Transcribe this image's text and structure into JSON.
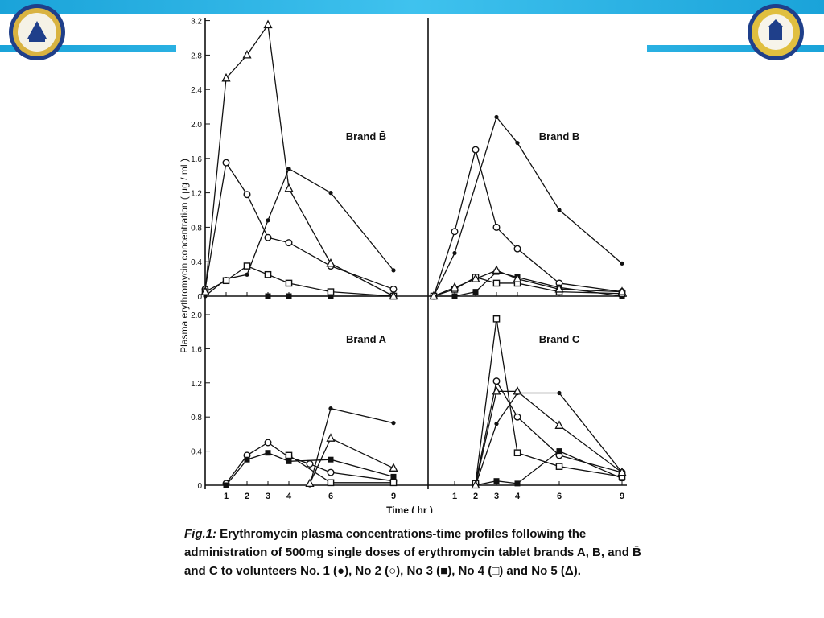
{
  "figure": {
    "caption_label": "Fig.1:",
    "caption_text": "Erythromycin plasma concentrations-time profiles following the administration of 500mg single doses of erythromycin tablet brands A, B, and B̄ and C to volunteers No. 1 (●), No 2 (○), No 3 (■), No 4 (□) and No 5 (Δ)."
  },
  "chart_data": [
    {
      "type": "line",
      "title": "Brand B̄",
      "ylabel": "Plasma erythromycin concentration ( µg / ml )",
      "yticks": [
        "0",
        "0.4",
        "0.8",
        "1.2",
        "1.6",
        "2.0",
        "2.4",
        "2.8",
        "3.2"
      ],
      "ylim": [
        0,
        3.2
      ],
      "xlim": [
        0,
        9
      ],
      "series": [
        {
          "marker": "filled-circle",
          "x": [
            0,
            1,
            2,
            3,
            4,
            6,
            9
          ],
          "y": [
            0,
            0.2,
            0.25,
            0.88,
            1.48,
            1.2,
            0.3
          ]
        },
        {
          "marker": "open-circle",
          "x": [
            0,
            1,
            2,
            3,
            4,
            6,
            9
          ],
          "y": [
            0.08,
            1.55,
            1.18,
            0.68,
            0.62,
            0.35,
            0.08
          ]
        },
        {
          "marker": "filled-square",
          "x": [
            3,
            4,
            6,
            9
          ],
          "y": [
            0,
            0,
            0,
            0
          ]
        },
        {
          "marker": "open-square",
          "x": [
            0,
            1,
            2,
            3,
            4,
            6,
            9
          ],
          "y": [
            0.05,
            0.18,
            0.35,
            0.25,
            0.15,
            0.05,
            0
          ]
        },
        {
          "marker": "triangle",
          "x": [
            0,
            1,
            2,
            3,
            4,
            6,
            9
          ],
          "y": [
            0.05,
            2.53,
            2.8,
            3.15,
            1.25,
            0.38,
            0
          ]
        }
      ]
    },
    {
      "type": "line",
      "title": "Brand B",
      "ylim": [
        0,
        3.2
      ],
      "xlim": [
        0,
        9
      ],
      "series": [
        {
          "marker": "filled-circle",
          "x": [
            0,
            1,
            3,
            4,
            6,
            9
          ],
          "y": [
            0,
            0.5,
            2.08,
            1.78,
            1.0,
            0.38
          ]
        },
        {
          "marker": "open-circle",
          "x": [
            0,
            1,
            2,
            3,
            4,
            6,
            9
          ],
          "y": [
            0,
            0.75,
            1.7,
            0.8,
            0.55,
            0.15,
            0.05
          ]
        },
        {
          "marker": "filled-square",
          "x": [
            0,
            1,
            2,
            3,
            4,
            6,
            9
          ],
          "y": [
            0,
            0,
            0.05,
            0.28,
            0.22,
            0.1,
            0
          ]
        },
        {
          "marker": "open-square",
          "x": [
            0,
            1,
            2,
            3,
            4,
            6,
            9
          ],
          "y": [
            0,
            0.08,
            0.22,
            0.15,
            0.15,
            0.05,
            0.03
          ]
        },
        {
          "marker": "triangle",
          "x": [
            0,
            1,
            2,
            3,
            4,
            6,
            9
          ],
          "y": [
            0,
            0.1,
            0.2,
            0.3,
            0.2,
            0.08,
            0.05
          ]
        }
      ]
    },
    {
      "type": "line",
      "title": "Brand A",
      "xlabel": "Time ( hr )",
      "yticks": [
        "0",
        "0.4",
        "0.8",
        "1.2",
        "1.6",
        "2.0"
      ],
      "xticks": [
        "1",
        "2",
        "3",
        "4",
        "6",
        "9"
      ],
      "ylim": [
        0,
        2.0
      ],
      "xlim": [
        0,
        9
      ],
      "series": [
        {
          "marker": "filled-circle",
          "x": [
            5,
            6,
            9
          ],
          "y": [
            0,
            0.9,
            0.73
          ]
        },
        {
          "marker": "open-circle",
          "x": [
            1,
            2,
            3,
            4,
            5,
            6,
            9
          ],
          "y": [
            0.02,
            0.35,
            0.5,
            0.33,
            0.25,
            0.15,
            0.05
          ]
        },
        {
          "marker": "filled-square",
          "x": [
            1,
            2,
            3,
            4,
            6,
            9
          ],
          "y": [
            0,
            0.3,
            0.38,
            0.28,
            0.3,
            0.1
          ]
        },
        {
          "marker": "open-square",
          "x": [
            4,
            6,
            9
          ],
          "y": [
            0.35,
            0.03,
            0.03
          ]
        },
        {
          "marker": "triangle",
          "x": [
            5,
            6,
            9
          ],
          "y": [
            0.02,
            0.55,
            0.2
          ]
        }
      ]
    },
    {
      "type": "line",
      "title": "Brand C",
      "xticks": [
        "1",
        "2",
        "3",
        "4",
        "6",
        "9"
      ],
      "ylim": [
        0,
        2.0
      ],
      "xlim": [
        0,
        9
      ],
      "series": [
        {
          "marker": "filled-circle",
          "x": [
            2,
            3,
            4,
            6,
            9
          ],
          "y": [
            0,
            0.72,
            1.08,
            1.08,
            0.15
          ]
        },
        {
          "marker": "open-circle",
          "x": [
            2,
            3,
            4,
            6,
            9
          ],
          "y": [
            0.02,
            1.22,
            0.8,
            0.35,
            0.15
          ]
        },
        {
          "marker": "filled-square",
          "x": [
            2,
            3,
            4,
            6,
            9
          ],
          "y": [
            0,
            0.05,
            0.02,
            0.4,
            0.08
          ]
        },
        {
          "marker": "open-square",
          "x": [
            2,
            3,
            4,
            6,
            9
          ],
          "y": [
            0.02,
            1.95,
            0.38,
            0.22,
            0.1
          ]
        },
        {
          "marker": "triangle",
          "x": [
            2,
            3,
            4,
            6,
            9
          ],
          "y": [
            0,
            1.1,
            1.1,
            0.7,
            0.15
          ]
        }
      ]
    }
  ]
}
